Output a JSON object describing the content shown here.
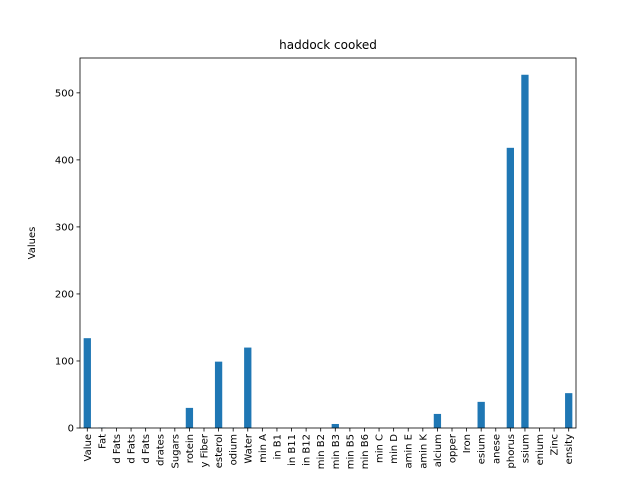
{
  "chart_data": {
    "type": "bar",
    "title": "haddock cooked",
    "xlabel": "",
    "ylabel": "Values",
    "ylim": [
      0,
      552
    ],
    "yticks": [
      0,
      100,
      200,
      300,
      400,
      500
    ],
    "grid": false,
    "color": "#1f77b4",
    "categories": [
      "Value",
      "Fat",
      "d Fats",
      "d Fats",
      "d Fats",
      "drates",
      "Sugars",
      "rotein",
      "y Fiber",
      "esterol",
      "odium",
      "Water",
      "min A",
      "in B1",
      "in B11",
      "in B12",
      "min B2",
      "min B3",
      "min B5",
      "min B6",
      "min C",
      "min D",
      "amin E",
      "amin K",
      "alcium",
      "opper",
      "Iron",
      "esium",
      "anese",
      "phorus",
      "ssium",
      "enium",
      "Zinc",
      "ensity"
    ],
    "values": [
      134,
      0.5,
      0.1,
      0.1,
      0.2,
      0,
      0,
      30,
      0,
      99,
      0.3,
      120,
      0,
      0,
      0,
      0,
      0,
      6,
      0,
      0,
      0,
      0,
      0,
      0,
      21,
      0,
      0,
      39,
      0,
      418,
      527,
      0,
      0,
      52
    ]
  }
}
